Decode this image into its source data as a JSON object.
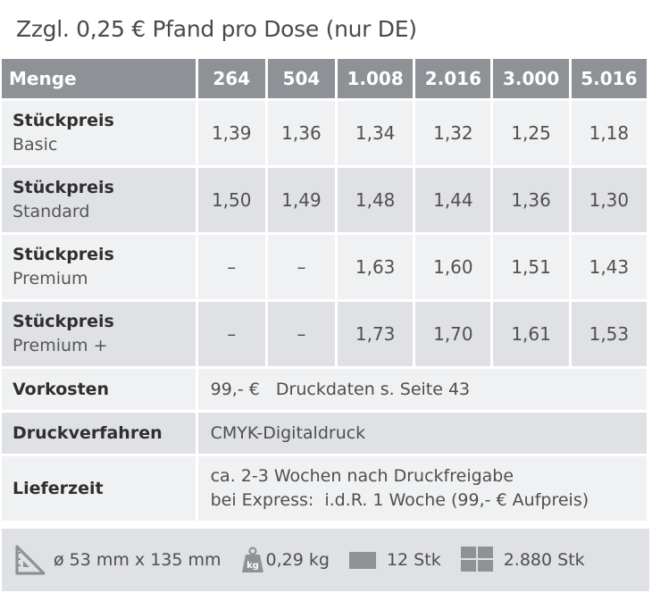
{
  "title": "Zzgl. 0,25 € Pfand pro Dose (nur DE)",
  "header": {
    "label": "Menge",
    "quantities": [
      "264",
      "504",
      "1.008",
      "2.016",
      "3.000",
      "5.016"
    ]
  },
  "price_rows": [
    {
      "title": "Stückpreis",
      "variant": "Basic",
      "values": [
        "1,39",
        "1,36",
        "1,34",
        "1,32",
        "1,25",
        "1,18"
      ]
    },
    {
      "title": "Stückpreis",
      "variant": "Standard",
      "values": [
        "1,50",
        "1,49",
        "1,48",
        "1,44",
        "1,36",
        "1,30"
      ]
    },
    {
      "title": "Stückpreis",
      "variant": "Premium",
      "values": [
        "–",
        "–",
        "1,63",
        "1,60",
        "1,51",
        "1,43"
      ]
    },
    {
      "title": "Stückpreis",
      "variant": "Premium +",
      "values": [
        "–",
        "–",
        "1,73",
        "1,70",
        "1,61",
        "1,53"
      ]
    }
  ],
  "vorkosten": {
    "label": "Vorkosten",
    "value": "99,- €   Druckdaten s. Seite 43"
  },
  "druckverfahren": {
    "label": "Druckverfahren",
    "value": "CMYK-Digitaldruck"
  },
  "lieferzeit": {
    "label": "Lieferzeit",
    "line1": "ca. 2-3 Wochen nach Druckfreigabe",
    "line2": "bei Express:  i.d.R. 1 Woche (99,- € Aufpreis)"
  },
  "footer": {
    "dimensions": "ø 53 mm x 135 mm",
    "weight": "0,29 kg",
    "weight_icon_text": "kg",
    "pack": "12 Stk",
    "pallet": "2.880 Stk",
    "icons": [
      "set-square-icon",
      "weight-icon",
      "box-icon",
      "pallet-icon"
    ]
  },
  "colors": {
    "header_bg": "#8e9196",
    "row_light": "#f0f1f2",
    "row_dark": "#dfe1e4",
    "footer_bg": "#dfe1e4",
    "icon": "#8e9196"
  }
}
